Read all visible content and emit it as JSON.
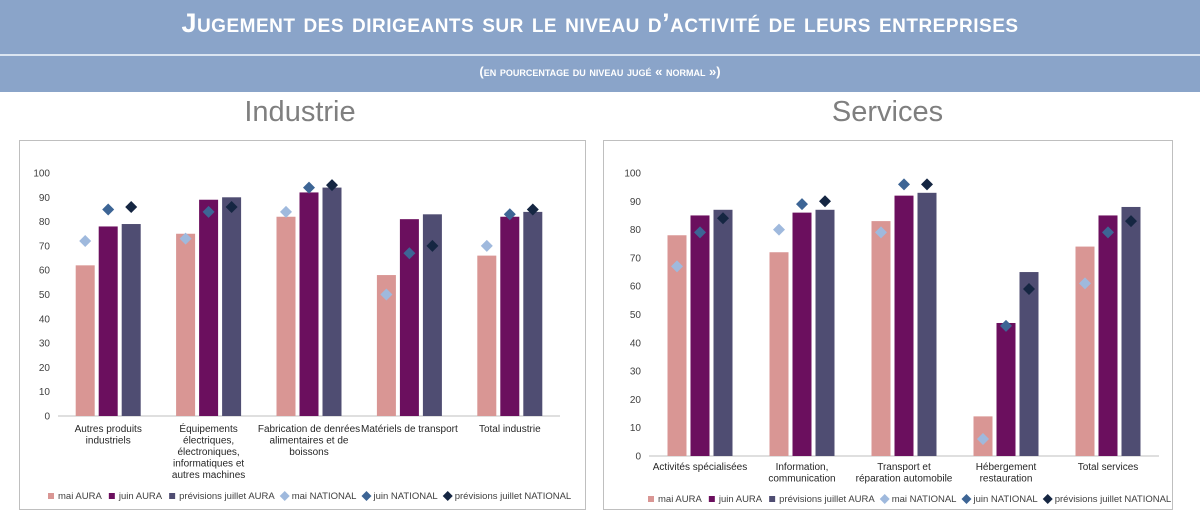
{
  "header": {
    "title": "Jugement des dirigeants sur le niveau d’activité de leurs entreprises",
    "subtitle": "(en pourcentage du niveau jugé « normal »)",
    "banner_color": "#8aa4c9"
  },
  "series_styles": [
    {
      "name": "mai AURA",
      "kind": "bar",
      "color": "#d99694"
    },
    {
      "name": "juin AURA",
      "kind": "bar",
      "color": "#6b0f5e"
    },
    {
      "name": "prévisions juillet AURA",
      "kind": "bar",
      "color": "#4f4d72"
    },
    {
      "name": "mai NATIONAL",
      "kind": "marker",
      "color": "#9fb9dd"
    },
    {
      "name": "juin NATIONAL",
      "kind": "marker",
      "color": "#3d6595"
    },
    {
      "name": "prévisions juillet NATIONAL",
      "kind": "marker",
      "color": "#152642"
    }
  ],
  "chart_data": [
    {
      "type": "bar",
      "title": "Industrie",
      "ylim": [
        0,
        100
      ],
      "yticks": [
        0,
        10,
        20,
        30,
        40,
        50,
        60,
        70,
        80,
        90,
        100
      ],
      "grid": false,
      "legend": "bottom",
      "categories": [
        [
          "Autres produits",
          "industriels"
        ],
        [
          "Équipements",
          "électriques,",
          "électroniques,",
          "informatiques et",
          "autres machines"
        ],
        [
          "Fabrication de denrées",
          "alimentaires et de",
          "boissons"
        ],
        [
          "Matériels de transport"
        ],
        [
          "Total industrie"
        ]
      ],
      "series": [
        {
          "name": "mai AURA",
          "values": [
            62,
            75,
            82,
            58,
            66
          ]
        },
        {
          "name": "juin AURA",
          "values": [
            78,
            89,
            92,
            81,
            82
          ]
        },
        {
          "name": "prévisions juillet AURA",
          "values": [
            79,
            90,
            94,
            83,
            84
          ]
        },
        {
          "name": "mai NATIONAL",
          "values": [
            72,
            73,
            84,
            50,
            70
          ]
        },
        {
          "name": "juin NATIONAL",
          "values": [
            85,
            84,
            94,
            67,
            83
          ]
        },
        {
          "name": "prévisions juillet NATIONAL",
          "values": [
            86,
            86,
            95,
            70,
            85
          ]
        }
      ]
    },
    {
      "type": "bar",
      "title": "Services",
      "ylim": [
        0,
        100
      ],
      "yticks": [
        0,
        10,
        20,
        30,
        40,
        50,
        60,
        70,
        80,
        90,
        100
      ],
      "grid": false,
      "legend": "bottom",
      "categories": [
        [
          "Activités spécialisées"
        ],
        [
          "Information,",
          "communication"
        ],
        [
          "Transport et",
          "réparation automobile"
        ],
        [
          "Hébergement",
          "restauration"
        ],
        [
          "Total services"
        ]
      ],
      "series": [
        {
          "name": "mai AURA",
          "values": [
            78,
            72,
            83,
            14,
            74
          ]
        },
        {
          "name": "juin AURA",
          "values": [
            85,
            86,
            92,
            47,
            85
          ]
        },
        {
          "name": "prévisions juillet AURA",
          "values": [
            87,
            87,
            93,
            65,
            88
          ]
        },
        {
          "name": "mai NATIONAL",
          "values": [
            67,
            80,
            79,
            6,
            61
          ]
        },
        {
          "name": "juin NATIONAL",
          "values": [
            79,
            89,
            96,
            46,
            79
          ]
        },
        {
          "name": "prévisions juillet NATIONAL",
          "values": [
            84,
            90,
            96,
            59,
            83
          ]
        }
      ]
    }
  ]
}
